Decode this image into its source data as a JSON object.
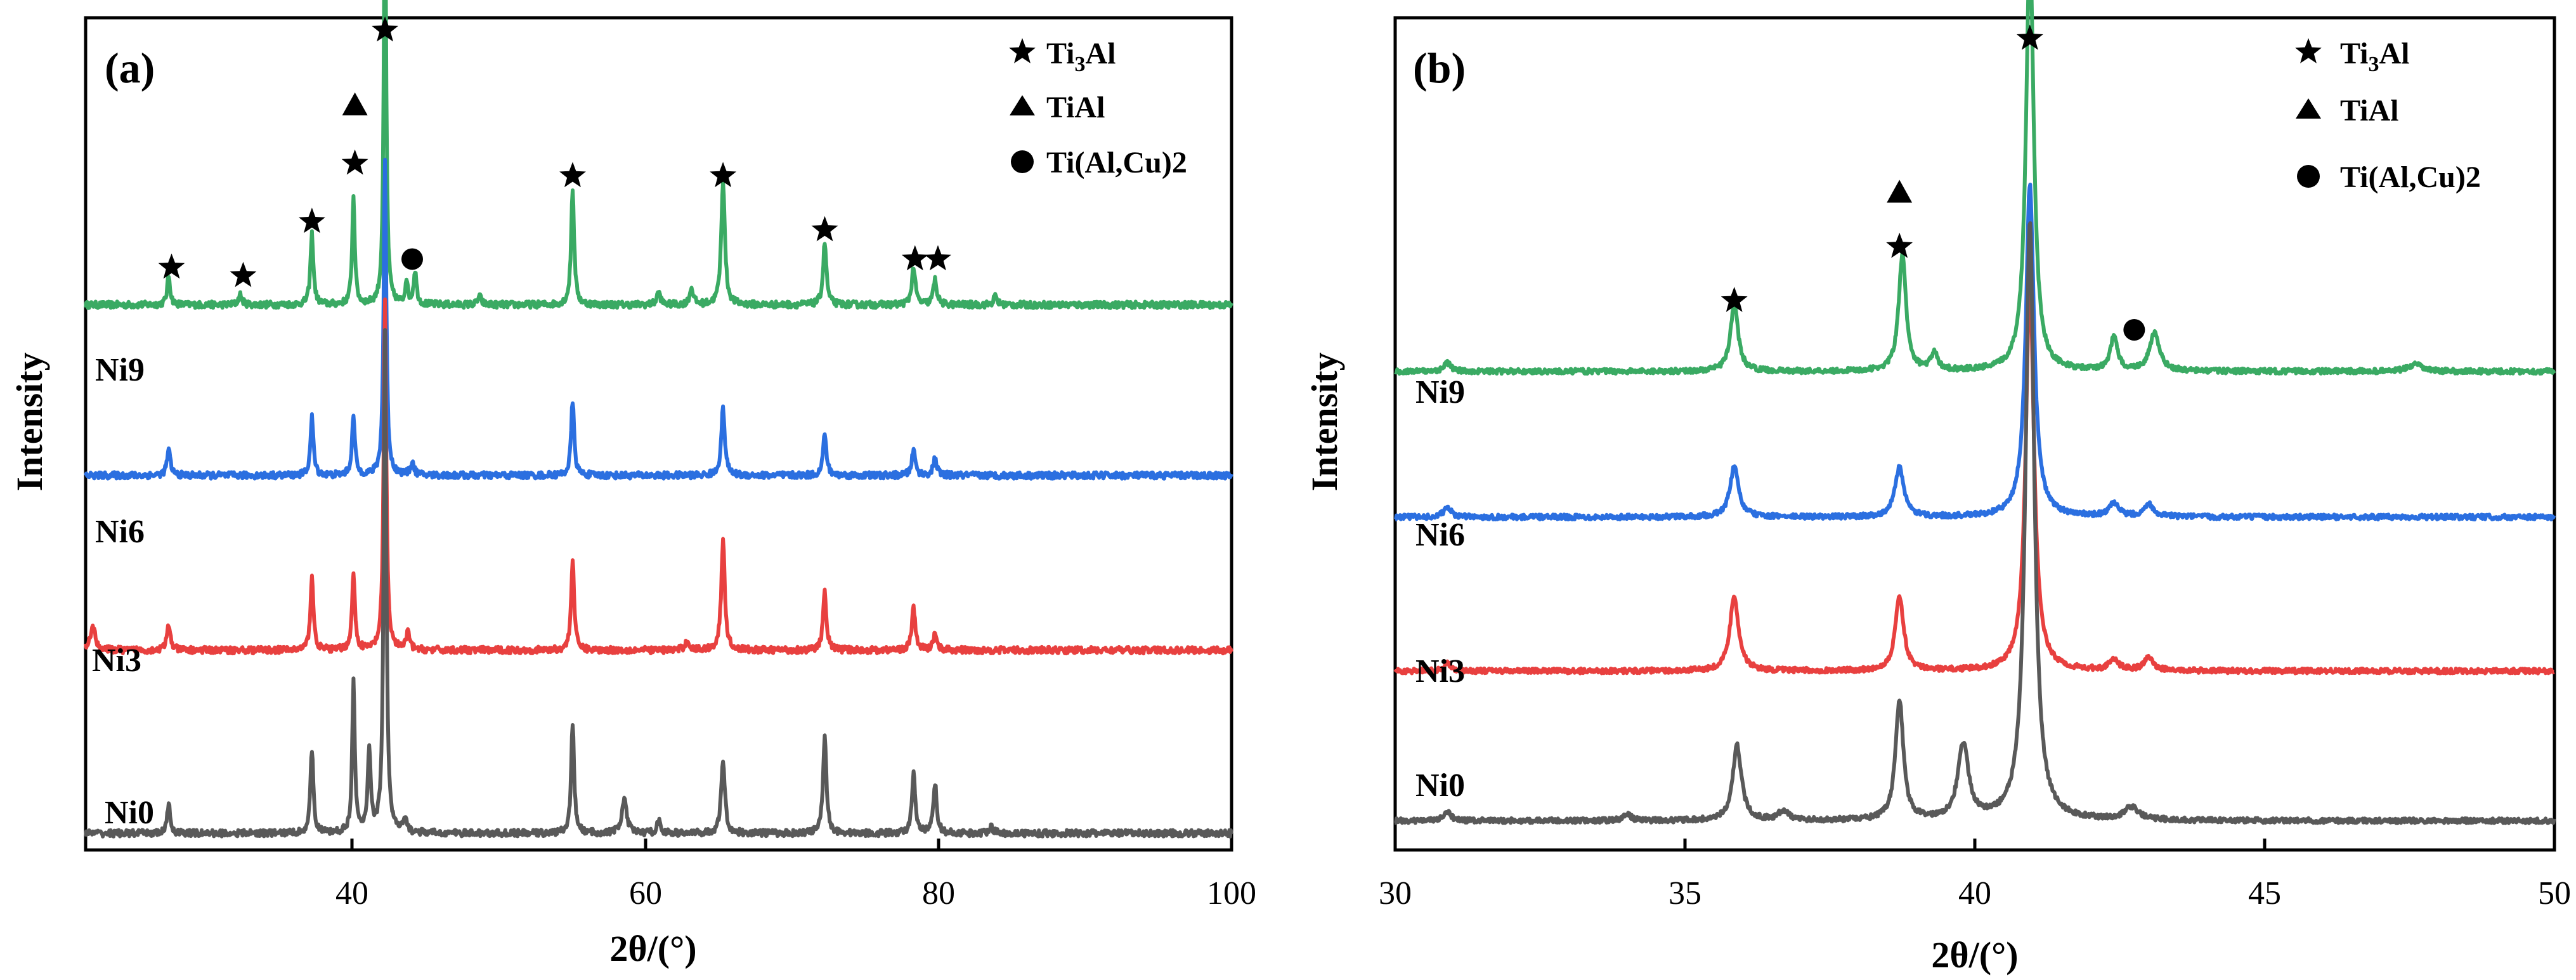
{
  "figure": {
    "legend": {
      "items": [
        {
          "symbol": "star",
          "label": "Ti",
          "sub": "3",
          "label_end": "Al"
        },
        {
          "symbol": "triangle",
          "label": "TiAl"
        },
        {
          "symbol": "circle",
          "label": "Ti(Al,Cu)2"
        }
      ]
    }
  },
  "colors": {
    "Ni0": "#595959",
    "Ni3": "#e8403f",
    "Ni6": "#2b6fe0",
    "Ni9": "#3aaa63"
  },
  "chart_data": [
    {
      "type": "line",
      "panel_label": "(a)",
      "xlabel": "2θ/(°)",
      "ylabel": "Intensity",
      "xlim": [
        20,
        100
      ],
      "ylim": [
        0,
        1
      ],
      "x_ticks": [
        40,
        60,
        80,
        100
      ],
      "x_tick_labels": [
        "40",
        "60",
        "80",
        "100"
      ],
      "series": [
        {
          "name": "Ni0",
          "label": "Ni0",
          "baseline": 0.02,
          "peaks": [
            [
              25.8,
              0.035,
              0.25
            ],
            [
              35.8,
              0.1,
              0.25
            ],
            [
              38.7,
              0.18,
              0.22
            ],
            [
              39.8,
              0.1,
              0.25
            ],
            [
              40.9,
              0.6,
              0.22
            ],
            [
              42.3,
              0.015,
              0.3
            ],
            [
              54.0,
              0.13,
              0.25
            ],
            [
              57.6,
              0.04,
              0.4
            ],
            [
              60.0,
              0.015,
              0.3
            ],
            [
              64.5,
              0.09,
              0.3
            ],
            [
              71.6,
              0.115,
              0.28
            ],
            [
              77.8,
              0.07,
              0.28
            ],
            [
              79.3,
              0.06,
              0.28
            ],
            [
              83.2,
              0.01,
              0.3
            ]
          ]
        },
        {
          "name": "Ni3",
          "label": "Ni3",
          "baseline": 0.24,
          "peaks": [
            [
              20.5,
              0.03,
              0.4
            ],
            [
              25.8,
              0.03,
              0.3
            ],
            [
              35.8,
              0.09,
              0.25
            ],
            [
              38.7,
              0.09,
              0.25
            ],
            [
              40.9,
              0.42,
              0.22
            ],
            [
              42.5,
              0.02,
              0.3
            ],
            [
              54.0,
              0.11,
              0.25
            ],
            [
              62.0,
              0.01,
              0.4
            ],
            [
              64.5,
              0.13,
              0.3
            ],
            [
              71.6,
              0.07,
              0.28
            ],
            [
              77.8,
              0.05,
              0.3
            ],
            [
              79.3,
              0.02,
              0.3
            ]
          ]
        },
        {
          "name": "Ni6",
          "label": "Ni6",
          "baseline": 0.45,
          "peaks": [
            [
              25.8,
              0.03,
              0.3
            ],
            [
              35.8,
              0.07,
              0.25
            ],
            [
              38.7,
              0.07,
              0.25
            ],
            [
              40.9,
              0.38,
              0.22
            ],
            [
              42.8,
              0.015,
              0.3
            ],
            [
              54.0,
              0.09,
              0.25
            ],
            [
              64.5,
              0.08,
              0.3
            ],
            [
              71.6,
              0.05,
              0.28
            ],
            [
              77.8,
              0.03,
              0.3
            ],
            [
              79.3,
              0.02,
              0.3
            ]
          ]
        },
        {
          "name": "Ni9",
          "label": "Ni9",
          "baseline": 0.655,
          "peaks": [
            [
              25.8,
              0.035,
              0.25
            ],
            [
              30.8,
              0.012,
              0.3
            ],
            [
              35.8,
              0.085,
              0.25
            ],
            [
              38.7,
              0.13,
              0.22
            ],
            [
              40.9,
              0.51,
              0.2
            ],
            [
              42.4,
              0.03,
              0.2
            ],
            [
              43.0,
              0.04,
              0.25
            ],
            [
              47.5,
              0.01,
              0.3
            ],
            [
              54.0,
              0.14,
              0.25
            ],
            [
              60.0,
              0.015,
              0.3
            ],
            [
              62.3,
              0.02,
              0.3
            ],
            [
              64.5,
              0.15,
              0.3
            ],
            [
              71.6,
              0.075,
              0.28
            ],
            [
              77.8,
              0.045,
              0.3
            ],
            [
              79.3,
              0.03,
              0.3
            ],
            [
              83.5,
              0.01,
              0.3
            ]
          ]
        }
      ],
      "annotations": [
        {
          "symbol": "star",
          "x": 40.9,
          "y": 0.985
        },
        {
          "symbol": "triangle",
          "x": 38.8,
          "y": 0.895
        },
        {
          "symbol": "star",
          "x": 38.8,
          "y": 0.825
        },
        {
          "symbol": "star",
          "x": 35.8,
          "y": 0.755
        },
        {
          "symbol": "star",
          "x": 26.0,
          "y": 0.7
        },
        {
          "symbol": "star",
          "x": 31.0,
          "y": 0.69
        },
        {
          "symbol": "circle",
          "x": 42.8,
          "y": 0.71
        },
        {
          "symbol": "star",
          "x": 54.0,
          "y": 0.81
        },
        {
          "symbol": "star",
          "x": 64.5,
          "y": 0.81
        },
        {
          "symbol": "star",
          "x": 71.6,
          "y": 0.745
        },
        {
          "symbol": "star",
          "x": 77.9,
          "y": 0.71
        },
        {
          "symbol": "star",
          "x": 79.5,
          "y": 0.71
        }
      ]
    },
    {
      "type": "line",
      "panel_label": "(b)",
      "xlabel": "2θ/(°)",
      "ylabel": "Intensity",
      "xlim": [
        30,
        50
      ],
      "ylim": [
        0,
        1
      ],
      "x_ticks": [
        30,
        35,
        40,
        45,
        50
      ],
      "x_tick_labels": [
        "30",
        "35",
        "40",
        "45",
        "50"
      ],
      "series": [
        {
          "name": "Ni0",
          "label": "Ni0",
          "baseline": 0.035,
          "peaks": [
            [
              30.9,
              0.01,
              0.15
            ],
            [
              34.0,
              0.008,
              0.15
            ],
            [
              35.9,
              0.09,
              0.18
            ],
            [
              36.7,
              0.012,
              0.2
            ],
            [
              38.7,
              0.145,
              0.16
            ],
            [
              39.8,
              0.09,
              0.22
            ],
            [
              40.95,
              0.72,
              0.18
            ],
            [
              42.7,
              0.015,
              0.3
            ]
          ]
        },
        {
          "name": "Ni3",
          "label": "Ni3",
          "baseline": 0.215,
          "peaks": [
            [
              30.9,
              0.01,
              0.15
            ],
            [
              35.85,
              0.09,
              0.18
            ],
            [
              38.7,
              0.09,
              0.17
            ],
            [
              40.95,
              0.47,
              0.17
            ],
            [
              42.4,
              0.012,
              0.2
            ],
            [
              43.0,
              0.015,
              0.2
            ]
          ]
        },
        {
          "name": "Ni6",
          "label": "Ni6",
          "baseline": 0.4,
          "peaks": [
            [
              30.9,
              0.012,
              0.15
            ],
            [
              35.85,
              0.06,
              0.18
            ],
            [
              38.7,
              0.06,
              0.18
            ],
            [
              40.95,
              0.4,
              0.17
            ],
            [
              42.4,
              0.015,
              0.2
            ],
            [
              43.0,
              0.015,
              0.2
            ]
          ]
        },
        {
          "name": "Ni9",
          "label": "Ni9",
          "baseline": 0.575,
          "peaks": [
            [
              30.9,
              0.01,
              0.15
            ],
            [
              35.85,
              0.08,
              0.16
            ],
            [
              38.75,
              0.14,
              0.15
            ],
            [
              39.3,
              0.02,
              0.15
            ],
            [
              40.95,
              0.51,
              0.16
            ],
            [
              42.4,
              0.04,
              0.15
            ],
            [
              43.1,
              0.045,
              0.2
            ],
            [
              47.6,
              0.008,
              0.3
            ]
          ]
        }
      ],
      "annotations": [
        {
          "symbol": "star",
          "x": 40.95,
          "y": 0.975
        },
        {
          "symbol": "triangle",
          "x": 38.7,
          "y": 0.79
        },
        {
          "symbol": "star",
          "x": 38.7,
          "y": 0.725
        },
        {
          "symbol": "star",
          "x": 35.85,
          "y": 0.66
        },
        {
          "symbol": "circle",
          "x": 42.75,
          "y": 0.625
        }
      ]
    }
  ]
}
